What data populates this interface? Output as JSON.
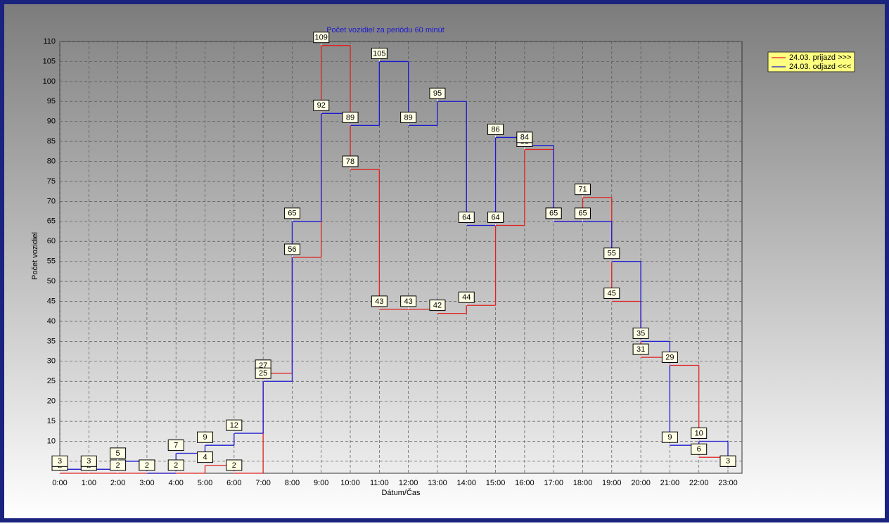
{
  "chart_data": {
    "type": "step",
    "title": "Počet vozidiel za periódu 60 minút",
    "x_label": "Dátum/Čas",
    "y_label": "Počet vozidiel",
    "categories": [
      "0:00",
      "1:00",
      "2:00",
      "3:00",
      "4:00",
      "5:00",
      "6:00",
      "7:00",
      "8:00",
      "9:00",
      "10:00",
      "11:00",
      "12:00",
      "13:00",
      "14:00",
      "15:00",
      "16:00",
      "17:00",
      "18:00",
      "19:00",
      "20:00",
      "21:00",
      "22:00",
      "23:00"
    ],
    "series": [
      {
        "name": "24.03.  prijazd >>>",
        "color": "#e02020",
        "values": [
          2,
          2,
          2,
          2,
          2,
          4,
          2,
          27,
          56,
          109,
          78,
          43,
          43,
          42,
          44,
          64,
          83,
          65,
          71,
          45,
          31,
          29,
          6,
          3
        ]
      },
      {
        "name": "24.03.  odjazd <<<",
        "color": "#1a1ad0",
        "values": [
          3,
          3,
          5,
          2,
          7,
          9,
          12,
          25,
          65,
          92,
          89,
          105,
          89,
          95,
          64,
          86,
          84,
          65,
          65,
          55,
          35,
          9,
          10,
          3
        ]
      }
    ],
    "ylim": [
      2,
      110
    ],
    "yticks": [
      5,
      10,
      15,
      20,
      25,
      30,
      35,
      40,
      45,
      50,
      55,
      60,
      65,
      70,
      75,
      80,
      85,
      90,
      95,
      100,
      105,
      110
    ],
    "grid": true,
    "legend": "top-right"
  }
}
